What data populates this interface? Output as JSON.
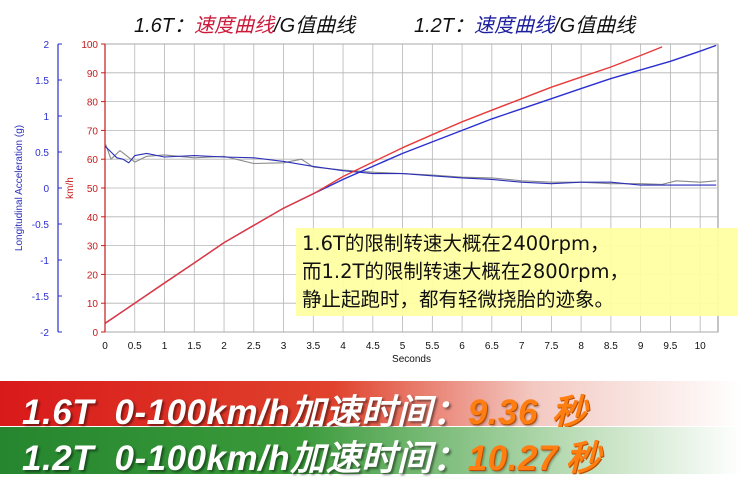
{
  "legend": {
    "g16": {
      "prefix": "1.6T：",
      "speed": "速度曲线",
      "sep": "/",
      "g": "G值曲线"
    },
    "g12": {
      "prefix": "1.2T：",
      "speed": "速度曲线",
      "sep": "/",
      "g": "G值曲线"
    }
  },
  "annotation": [
    "1.6T的限制转速大概在2400rpm，",
    "而1.2T的限制转速大概在2800rpm，",
    "静止起跑时，都有轻微挠胎的迹象。"
  ],
  "banners": [
    {
      "label": "1.6T  0-100km/h加速时间：",
      "value": "9.36",
      "unit": "秒"
    },
    {
      "label": "1.2T  0-100km/h加速时间：",
      "value": "10.27",
      "unit": "秒"
    }
  ],
  "chart_data": {
    "type": "line",
    "xlabel": "Seconds",
    "ylabel_left": "Longitudinal Acceleration (g)",
    "ylabel_right": "km/h",
    "xlim": [
      0,
      10.3
    ],
    "ylim_left": [
      -2,
      2
    ],
    "ylim_right": [
      0,
      100
    ],
    "x_ticks": [
      "0",
      "0.5",
      "1",
      "1.5",
      "2",
      "2.5",
      "3",
      "3.5",
      "4",
      "4.5",
      "5",
      "5.5",
      "6",
      "6.5",
      "7",
      "7.5",
      "8",
      "8.5",
      "9",
      "9.5",
      "10"
    ],
    "left_ticks": [
      "2",
      "1.5",
      "1",
      "0.5",
      "0",
      "-0.5",
      "-1",
      "-1.5",
      "-2"
    ],
    "right_ticks": [
      "100",
      "90",
      "80",
      "70",
      "60",
      "50",
      "40",
      "30",
      "20",
      "10",
      "0"
    ],
    "grid": true,
    "colors": {
      "speed_16": "#e83a3a",
      "speed_12": "#2b2fd0",
      "g_12": "#2b2fb8",
      "g_16": "#8a8a8a"
    },
    "series": [
      {
        "key": "speed_16",
        "x": [
          0,
          0.5,
          1,
          1.5,
          2,
          2.5,
          3,
          3.5,
          4,
          4.5,
          5,
          5.5,
          6,
          6.5,
          7,
          7.5,
          8,
          8.5,
          9,
          9.36
        ],
        "values": [
          3,
          10,
          17,
          24,
          31,
          37,
          43,
          48,
          54,
          59,
          64,
          68.5,
          73,
          77,
          81,
          85,
          88.5,
          92,
          96,
          99
        ]
      },
      {
        "key": "speed_12",
        "x": [
          0,
          0.5,
          1,
          1.5,
          2,
          2.5,
          3,
          3.5,
          4,
          4.5,
          5,
          5.5,
          6,
          6.5,
          7,
          7.5,
          8,
          8.5,
          9,
          9.5,
          10,
          10.27
        ],
        "values": [
          3,
          10,
          17,
          24,
          31,
          37,
          43,
          48,
          53,
          57.5,
          62,
          66,
          70,
          74,
          77.5,
          81,
          84.5,
          88,
          91,
          94,
          97.5,
          99.5
        ]
      },
      {
        "key": "g_12",
        "x": [
          0,
          0.1,
          0.2,
          0.3,
          0.4,
          0.5,
          0.7,
          1,
          1.5,
          2,
          2.5,
          3,
          3.5,
          4,
          4.5,
          5,
          5.5,
          6,
          6.5,
          7,
          7.5,
          8,
          8.5,
          9,
          9.5,
          10,
          10.27
        ],
        "values": [
          0.58,
          0.5,
          0.42,
          0.4,
          0.35,
          0.45,
          0.48,
          0.43,
          0.45,
          0.43,
          0.42,
          0.37,
          0.3,
          0.24,
          0.2,
          0.2,
          0.17,
          0.14,
          0.12,
          0.08,
          0.06,
          0.08,
          0.08,
          0.04,
          0.04,
          0.04,
          0.04
        ]
      },
      {
        "key": "g_16",
        "x": [
          0,
          0.1,
          0.25,
          0.5,
          0.7,
          1,
          1.5,
          2,
          2.5,
          3,
          3.3,
          3.5,
          4,
          4.5,
          5,
          5.5,
          6,
          6.5,
          7,
          7.5,
          8,
          8.5,
          9,
          9.36,
          9.6,
          10,
          10.27
        ],
        "values": [
          0.63,
          0.4,
          0.52,
          0.36,
          0.44,
          0.46,
          0.42,
          0.44,
          0.34,
          0.35,
          0.4,
          0.29,
          0.25,
          0.22,
          0.2,
          0.18,
          0.15,
          0.14,
          0.1,
          0.08,
          0.08,
          0.06,
          0.06,
          0.05,
          0.1,
          0.08,
          0.1
        ]
      }
    ]
  }
}
